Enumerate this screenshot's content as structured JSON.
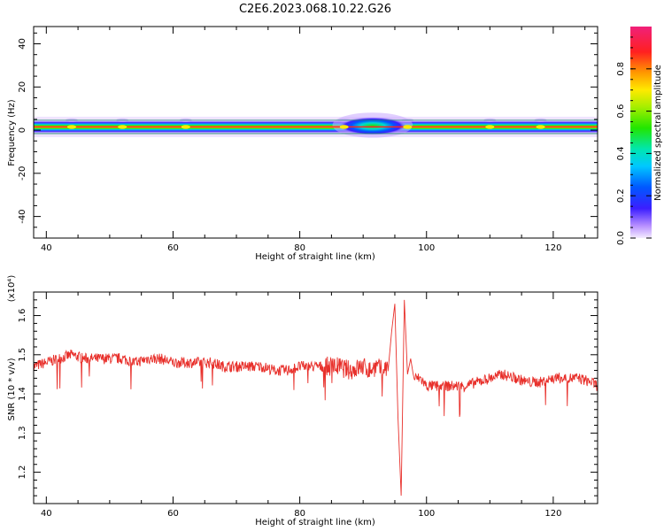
{
  "figure": {
    "title": "C2E6.2023.068.10.22.G26"
  },
  "chart_data": [
    {
      "type": "heatmap",
      "title": "",
      "xlabel": "Height of straight line (km)",
      "ylabel": "Frequency (Hz)",
      "xlim": [
        38,
        127
      ],
      "ylim": [
        -50,
        48
      ],
      "x_ticks": [
        "40",
        "60",
        "80",
        "100",
        "120"
      ],
      "y_ticks": [
        "-40",
        "-20",
        "0",
        "20",
        "40"
      ],
      "band": {
        "center_hz": 1.5,
        "core_half_width_hz": 1.5,
        "halo_half_width_hz": 3.5,
        "color_scale": "rainbow",
        "broadening": {
          "x_start": 86,
          "x_end": 97,
          "peak_half_width_hz": 5
        },
        "low_amplitude_nodes_km": [
          44,
          52,
          62,
          87,
          97,
          110,
          118
        ]
      },
      "colorbar": {
        "label": "Normalized spectral amplitude",
        "range": [
          0.0,
          1.0
        ],
        "ticks": [
          "0.0",
          "0.2",
          "0.4",
          "0.6",
          "0.8"
        ]
      }
    },
    {
      "type": "line",
      "title": "",
      "xlabel": "Height of straight line (km)",
      "ylabel": "SNR (10 * v/v)",
      "y_multiplier": "(x10⁴)",
      "xlim": [
        38,
        127
      ],
      "ylim": [
        1.12,
        1.66
      ],
      "x_ticks": [
        "40",
        "60",
        "80",
        "100",
        "120"
      ],
      "y_ticks": [
        "1.2",
        "1.3",
        "1.4",
        "1.5",
        "1.6"
      ],
      "series": [
        {
          "color": "#e8302b",
          "x": [
            38,
            40,
            42,
            44,
            46,
            48,
            50,
            52,
            54,
            56,
            58,
            60,
            62,
            64,
            66,
            68,
            70,
            72,
            74,
            76,
            78,
            80,
            82,
            84,
            86,
            88,
            90,
            91,
            92,
            93,
            94,
            94.5,
            95,
            95.5,
            96,
            96.5,
            97,
            97.5,
            98,
            99,
            100,
            102,
            104,
            106,
            108,
            110,
            112,
            114,
            116,
            118,
            120,
            122,
            124,
            126,
            127
          ],
          "y": [
            1.47,
            1.48,
            1.49,
            1.5,
            1.49,
            1.49,
            1.49,
            1.49,
            1.48,
            1.49,
            1.49,
            1.48,
            1.48,
            1.48,
            1.48,
            1.47,
            1.47,
            1.47,
            1.47,
            1.46,
            1.46,
            1.47,
            1.47,
            1.47,
            1.47,
            1.46,
            1.47,
            1.46,
            1.47,
            1.46,
            1.47,
            1.56,
            1.63,
            1.34,
            1.14,
            1.64,
            1.45,
            1.49,
            1.44,
            1.44,
            1.42,
            1.42,
            1.42,
            1.42,
            1.43,
            1.44,
            1.45,
            1.44,
            1.43,
            1.43,
            1.44,
            1.44,
            1.44,
            1.43,
            1.42
          ]
        }
      ]
    }
  ]
}
